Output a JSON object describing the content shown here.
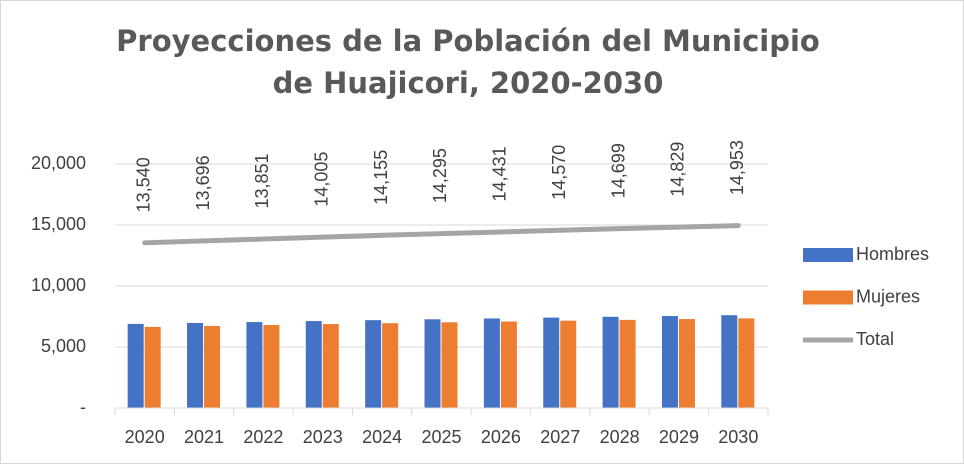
{
  "chart_data": {
    "type": "bar_line",
    "title": "Proyecciones de la Población del Municipio de Huajicori, 2020-2030",
    "categories": [
      "2020",
      "2021",
      "2022",
      "2023",
      "2024",
      "2025",
      "2026",
      "2027",
      "2028",
      "2029",
      "2030"
    ],
    "series": [
      {
        "name": "Hombres",
        "type": "bar",
        "color": "#4472c4",
        "values": [
          6890,
          6970,
          7045,
          7125,
          7200,
          7270,
          7340,
          7410,
          7475,
          7540,
          7605
        ]
      },
      {
        "name": "Mujeres",
        "type": "bar",
        "color": "#ed7d31",
        "values": [
          6650,
          6726,
          6806,
          6880,
          6955,
          7025,
          7091,
          7160,
          7224,
          7289,
          7348
        ]
      },
      {
        "name": "Total",
        "type": "line",
        "color": "#a5a5a5",
        "values": [
          13540,
          13696,
          13851,
          14005,
          14155,
          14295,
          14431,
          14570,
          14699,
          14829,
          14953
        ],
        "value_labels": [
          "13,540",
          "13,696",
          "13,851",
          "14,005",
          "14,155",
          "14,295",
          "14,431",
          "14,570",
          "14,699",
          "14,829",
          "14,953"
        ]
      }
    ],
    "ylim": [
      0,
      20000
    ],
    "yticks": [
      {
        "value": 0,
        "label": "-"
      },
      {
        "value": 5000,
        "label": "5,000"
      },
      {
        "value": 10000,
        "label": "10,000"
      },
      {
        "value": 15000,
        "label": "15,000"
      },
      {
        "value": 20000,
        "label": "20,000"
      }
    ],
    "grid": true,
    "legend": "right"
  }
}
